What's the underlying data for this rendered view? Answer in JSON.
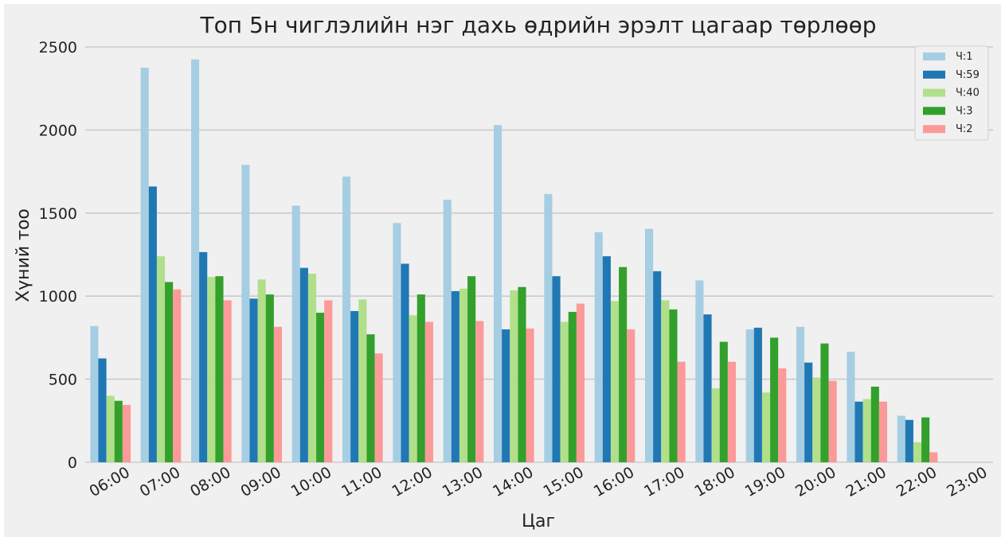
{
  "chart_data": {
    "type": "bar",
    "title": "Топ 5н чиглэлийн нэг дахь өдрийн эрэлт цагаар төрлөөр",
    "xlabel": "Цаг",
    "ylabel": "Хүний тоо",
    "ylim": [
      0,
      2500
    ],
    "yticks": [
      0,
      500,
      1000,
      1500,
      2000,
      2500
    ],
    "grid": true,
    "legend_position": "top-right",
    "categories": [
      "06:00",
      "07:00",
      "08:00",
      "09:00",
      "10:00",
      "11:00",
      "12:00",
      "13:00",
      "14:00",
      "15:00",
      "16:00",
      "17:00",
      "18:00",
      "19:00",
      "20:00",
      "21:00",
      "22:00",
      "23:00"
    ],
    "series": [
      {
        "name": "Ч:1",
        "color": "#a6cee3",
        "values": [
          820,
          2375,
          2425,
          1790,
          1545,
          1720,
          1440,
          1580,
          2030,
          1615,
          1385,
          1405,
          1095,
          800,
          815,
          665,
          280,
          0
        ]
      },
      {
        "name": "Ч:59",
        "color": "#1f78b4",
        "values": [
          625,
          1660,
          1265,
          985,
          1170,
          910,
          1195,
          1030,
          800,
          1120,
          1240,
          1150,
          890,
          810,
          600,
          365,
          255,
          0
        ]
      },
      {
        "name": "Ч:40",
        "color": "#b2df8a",
        "values": [
          400,
          1240,
          1115,
          1100,
          1135,
          980,
          885,
          1045,
          1035,
          845,
          970,
          975,
          445,
          420,
          510,
          380,
          120,
          0
        ]
      },
      {
        "name": "Ч:3",
        "color": "#33a02c",
        "values": [
          370,
          1085,
          1120,
          1010,
          900,
          770,
          1010,
          1120,
          1055,
          905,
          1175,
          920,
          725,
          750,
          715,
          455,
          270,
          0
        ]
      },
      {
        "name": "Ч:2",
        "color": "#fb9a99",
        "values": [
          345,
          1040,
          975,
          815,
          975,
          655,
          845,
          850,
          805,
          955,
          800,
          605,
          605,
          565,
          490,
          365,
          60,
          0
        ]
      }
    ]
  }
}
